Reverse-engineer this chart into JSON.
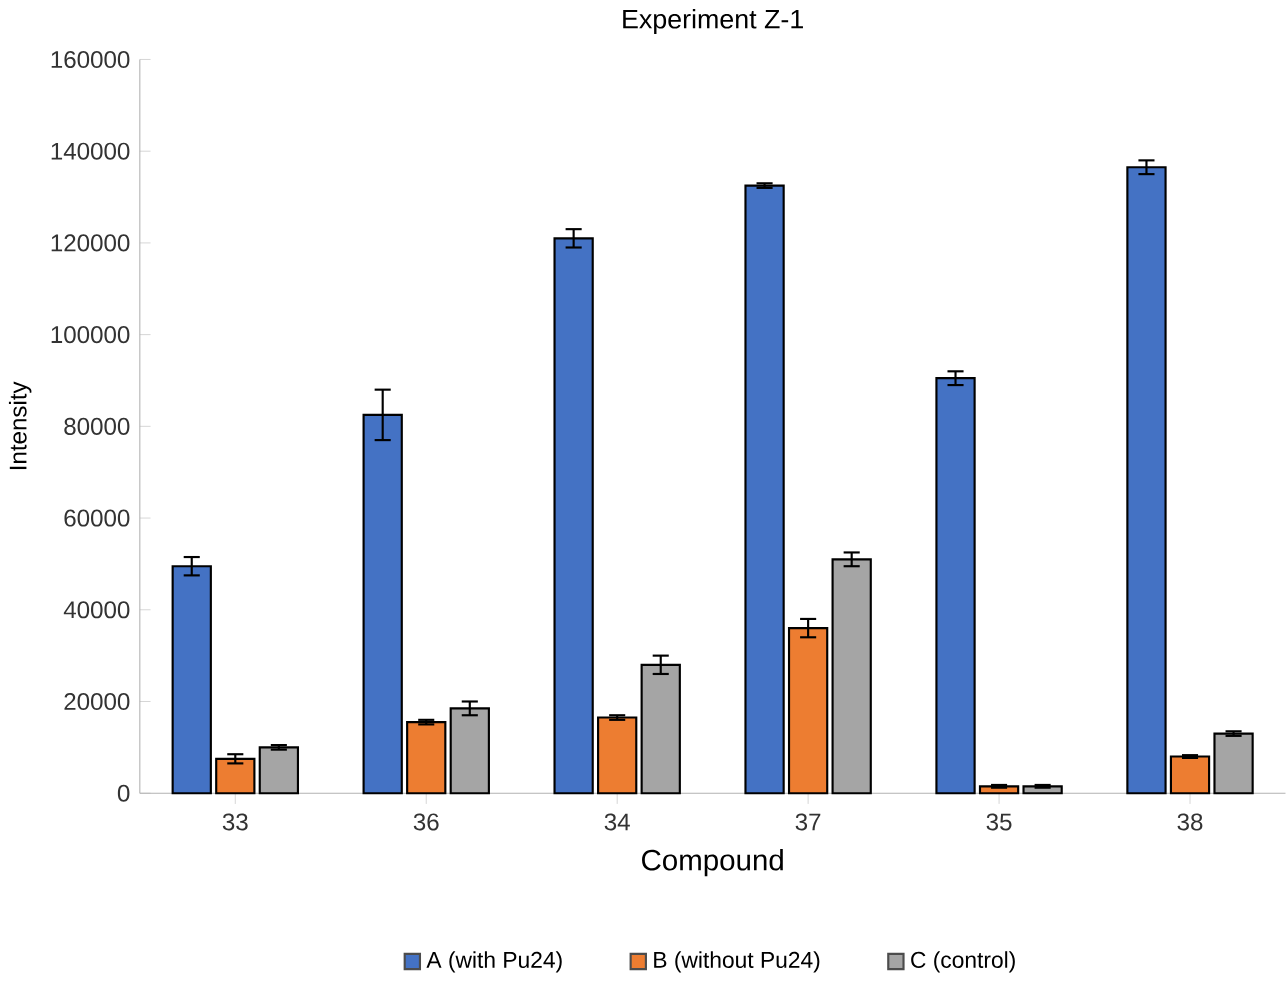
{
  "chart_data": {
    "type": "bar",
    "title": "Experiment Z-1",
    "xlabel": "Compound",
    "ylabel": "Intensity",
    "categories": [
      "33",
      "36",
      "34",
      "37",
      "35",
      "38"
    ],
    "series": [
      {
        "name": "A (with Pu24)",
        "color": "#4472c4",
        "values": [
          49500,
          82500,
          121000,
          132500,
          90500,
          136500
        ],
        "errors": [
          2000,
          5500,
          2000,
          500,
          1500,
          1500
        ]
      },
      {
        "name": "B (without Pu24)",
        "color": "#ed7d31",
        "values": [
          7500,
          15500,
          16500,
          36000,
          1500,
          8000
        ],
        "errors": [
          1000,
          500,
          500,
          2000,
          300,
          300
        ]
      },
      {
        "name": "C (control)",
        "color": "#a5a5a5",
        "values": [
          10000,
          18500,
          28000,
          51000,
          1500,
          13000
        ],
        "errors": [
          500,
          1500,
          2000,
          1500,
          300,
          500
        ]
      }
    ],
    "ylim": [
      0,
      160000
    ],
    "yticks": [
      0,
      20000,
      40000,
      60000,
      80000,
      100000,
      120000,
      140000,
      160000
    ],
    "grid": false,
    "legend": "bottom"
  }
}
